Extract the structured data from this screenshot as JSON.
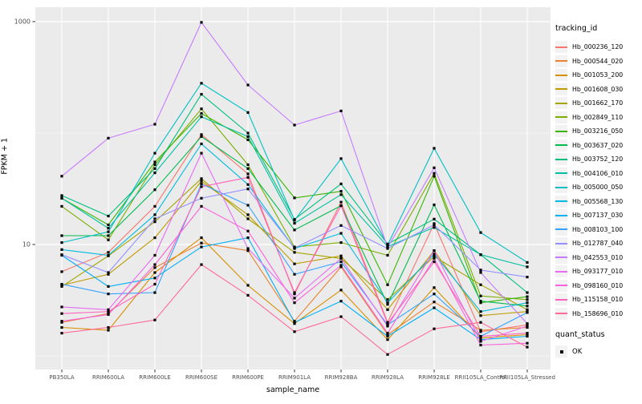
{
  "chart_data": {
    "type": "line",
    "title": "",
    "xlabel": "sample_name",
    "ylabel": "FPKM + 1",
    "y_scale": "log10",
    "y_tick_values": [
      10,
      1000
    ],
    "y_tick_labels": [
      "10",
      "1000"
    ],
    "y_minor_gridline_values": [
      1,
      100
    ],
    "ylim": [
      0.75,
      1350
    ],
    "grid": "on",
    "legend_position": "right",
    "legend_title": "tracking_id",
    "panel_background": "#EBEBEB",
    "gridline_color": "#FFFFFF",
    "tick_label_color": "#4D4D4D",
    "point_marker": "black-square",
    "categories": [
      "PB350LA",
      "RRIM600LA",
      "RRIM600LE",
      "RRIM600SE",
      "RRIM600PE",
      "RRIM901LA",
      "RRIM928BA",
      "RRIM928LA",
      "RRIM928LE",
      "RRII105LA_Control",
      "RRII105LA_Stressed"
    ],
    "values_note": "FPKM + 1, read off log axis (approximate)",
    "series": [
      {
        "name": "Hb_000236_120",
        "color": "#F8766D",
        "values": [
          5.7,
          8.5,
          22,
          97,
          43,
          3.6,
          24,
          2.0,
          15.4,
          1.65,
          1.9
        ]
      },
      {
        "name": "Hb_000544_020",
        "color": "#EA8331",
        "values": [
          2.0,
          2.4,
          6.2,
          10.3,
          8.8,
          2.05,
          6.3,
          1.55,
          3.05,
          1.7,
          1.8
        ]
      },
      {
        "name": "Hb_001053_200",
        "color": "#D89000",
        "values": [
          1.8,
          1.7,
          5.6,
          11.5,
          4.3,
          1.95,
          3.9,
          1.4,
          4.1,
          1.45,
          1.55
        ]
      },
      {
        "name": "Hb_001608_030",
        "color": "#C09B00",
        "values": [
          4.3,
          5.4,
          11.5,
          37,
          18.5,
          6.7,
          7.9,
          2.6,
          8.8,
          2.3,
          2.5
        ]
      },
      {
        "name": "Hb_001662_170",
        "color": "#A3A500",
        "values": [
          4.2,
          7.9,
          16,
          39,
          17,
          8.5,
          7.5,
          3.2,
          7.8,
          4.35,
          2.6
        ]
      },
      {
        "name": "Hb_002849_110",
        "color": "#7CAE00",
        "values": [
          22,
          11,
          52,
          165,
          52,
          9.5,
          10.4,
          8.0,
          43.5,
          3.45,
          3.2
        ]
      },
      {
        "name": "Hb_003216_050",
        "color": "#39B600",
        "values": [
          26,
          15,
          55,
          150,
          87,
          26.2,
          30,
          4.35,
          41,
          3.0,
          3.4
        ]
      },
      {
        "name": "Hb_003637_020",
        "color": "#00BB4E",
        "values": [
          12,
          12,
          31,
          93,
          48,
          13.5,
          22.3,
          2.9,
          22.7,
          3.1,
          2.8
        ]
      },
      {
        "name": "Hb_003752_120",
        "color": "#00BF7D",
        "values": [
          27.5,
          18,
          48,
          223,
          100,
          16.8,
          35,
          10.1,
          16.9,
          8.1,
          3.7
        ]
      },
      {
        "name": "Hb_004106_010",
        "color": "#00C1A3",
        "values": [
          26,
          14,
          44,
          140,
          93,
          15.5,
          28,
          9.6,
          14.2,
          8.1,
          6.3
        ]
      },
      {
        "name": "Hb_005000_050",
        "color": "#00BFC4",
        "values": [
          10.4,
          13,
          66,
          280,
          153,
          16.5,
          59,
          9.9,
          73,
          12.8,
          6.9
        ]
      },
      {
        "name": "Hb_005568_130",
        "color": "#00BAE0",
        "values": [
          9.0,
          8.0,
          18.5,
          80,
          34.5,
          9.2,
          12.6,
          3.0,
          8.2,
          2.5,
          3.0
        ]
      },
      {
        "name": "Hb_007137_030",
        "color": "#00B0F6",
        "values": [
          8.0,
          4.2,
          5.0,
          9.5,
          11.5,
          2.0,
          3.1,
          1.5,
          2.7,
          1.4,
          1.5
        ]
      },
      {
        "name": "Hb_008103_100",
        "color": "#35A2FF",
        "values": [
          4.4,
          3.6,
          3.7,
          35,
          22.5,
          5.4,
          7.0,
          1.9,
          3.6,
          1.5,
          2.45
        ]
      },
      {
        "name": "Hb_012787_040",
        "color": "#9590FF",
        "values": [
          8.1,
          5.6,
          17,
          26,
          31.5,
          9.3,
          14.8,
          9.2,
          15.0,
          5.9,
          5.1
        ]
      },
      {
        "name": "Hb_042553_010",
        "color": "#C77CFF",
        "values": [
          41,
          90,
          120,
          985,
          270,
          118,
          158,
          9.4,
          48.8,
          5.6,
          1.95
        ]
      },
      {
        "name": "Hb_093177_010",
        "color": "#E76BF3",
        "values": [
          2.75,
          2.6,
          8.0,
          66,
          9.2,
          3.3,
          7.5,
          1.85,
          8.8,
          1.35,
          1.85
        ]
      },
      {
        "name": "Hb_098160_010",
        "color": "#FA62DB",
        "values": [
          2.05,
          2.35,
          6.6,
          22,
          13.2,
          3.0,
          6.5,
          1.6,
          7.5,
          1.25,
          1.3
        ]
      },
      {
        "name": "Hb_115158_010",
        "color": "#FF62BC",
        "values": [
          2.4,
          2.5,
          4.4,
          33,
          40,
          3.7,
          22.3,
          1.95,
          7.0,
          1.5,
          1.6
        ]
      },
      {
        "name": "Hb_158696_010",
        "color": "#FF6A98",
        "values": [
          1.6,
          1.8,
          2.1,
          6.6,
          3.5,
          1.65,
          2.25,
          1.03,
          1.75,
          2.0,
          1.2
        ]
      }
    ],
    "quant_status": {
      "title": "quant_status",
      "items": [
        {
          "label": "OK",
          "marker": "black-square"
        }
      ]
    }
  },
  "labels": {
    "y_axis_title": "FPKM + 1",
    "x_axis_title": "sample_name",
    "legend_title": "tracking_id",
    "quant_status_title": "quant_status"
  }
}
